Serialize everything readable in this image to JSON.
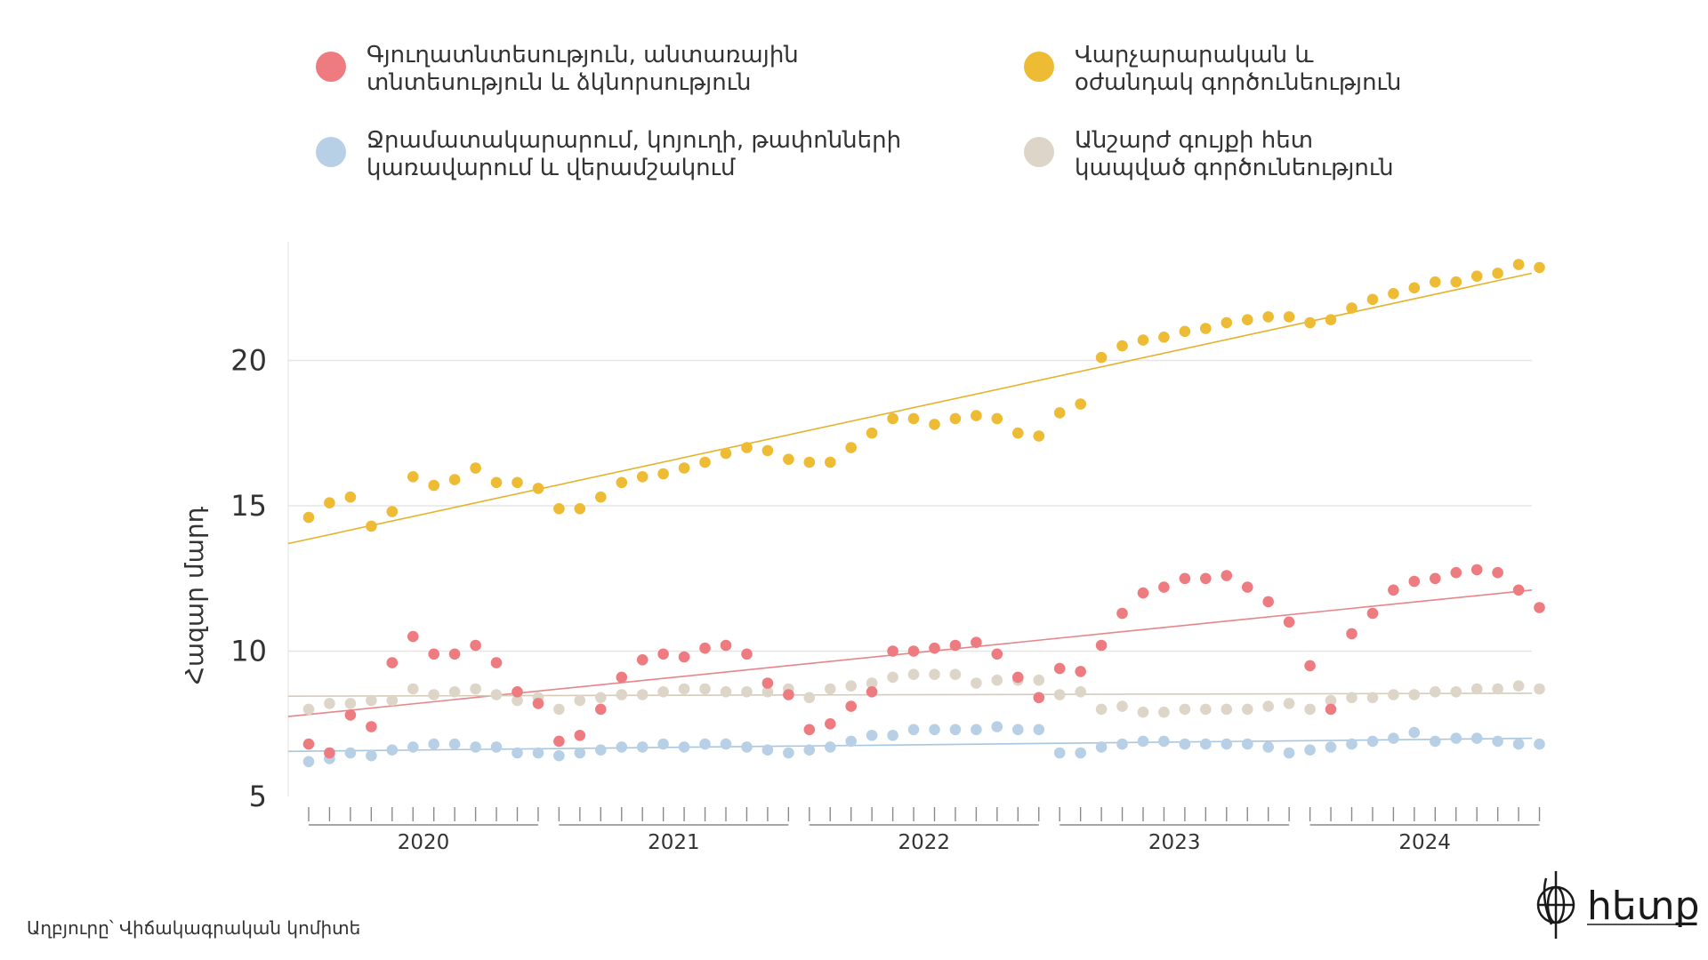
{
  "chart_data": {
    "type": "scatter",
    "title": "",
    "ylabel": "Հազար մարդ",
    "xlabel": "",
    "ylim": [
      5,
      24
    ],
    "yticks": [
      5,
      10,
      15,
      20
    ],
    "grid": true,
    "legend_position": "top",
    "years": [
      "2020",
      "2021",
      "2022",
      "2023",
      "2024"
    ],
    "months_per_year": 12,
    "series": [
      {
        "name": "Գյուղատնտեսություն, անտառային տնտեսություն և ձկնորսություն",
        "name_lines": [
          "Գյուղատնտեսություն, անտառային",
          "տնտեսություն և ձկնորսություն"
        ],
        "color": "#ee7b80",
        "trend_color": "#e5868a",
        "trend": [
          7.75,
          12.1
        ],
        "values": [
          6.8,
          6.5,
          7.8,
          7.4,
          9.6,
          10.5,
          9.9,
          9.9,
          10.2,
          9.6,
          8.6,
          8.2,
          6.9,
          7.1,
          8.0,
          9.1,
          9.7,
          9.9,
          9.8,
          10.1,
          10.2,
          9.9,
          8.9,
          8.5,
          7.3,
          7.5,
          8.1,
          8.6,
          10.0,
          10.0,
          10.1,
          10.2,
          10.3,
          9.9,
          9.1,
          8.4,
          9.4,
          9.3,
          10.2,
          11.3,
          12.0,
          12.2,
          12.5,
          12.5,
          12.6,
          12.2,
          11.7,
          11.0,
          9.5,
          8.0,
          10.6,
          11.3,
          12.1,
          12.4,
          12.5,
          12.7,
          12.8,
          12.7,
          12.1,
          11.5
        ]
      },
      {
        "name": "Վարչարարական և օժանդակ գործունեություն",
        "name_lines": [
          "Վարչարարական և",
          "օժանդակ գործունեություն"
        ],
        "color": "#edbb34",
        "trend_color": "#e6b22c",
        "trend": [
          13.7,
          23.0
        ],
        "values": [
          14.6,
          15.1,
          15.3,
          14.3,
          14.8,
          16.0,
          15.7,
          15.9,
          16.3,
          15.8,
          15.8,
          15.6,
          14.9,
          14.9,
          15.3,
          15.8,
          16.0,
          16.1,
          16.3,
          16.5,
          16.8,
          17.0,
          16.9,
          16.6,
          16.5,
          16.5,
          17.0,
          17.5,
          18.0,
          18.0,
          17.8,
          18.0,
          18.1,
          18.0,
          17.5,
          17.4,
          18.2,
          18.5,
          20.1,
          20.5,
          20.7,
          20.8,
          21.0,
          21.1,
          21.3,
          21.4,
          21.5,
          21.5,
          21.3,
          21.4,
          21.8,
          22.1,
          22.3,
          22.5,
          22.7,
          22.7,
          22.9,
          23.0,
          23.3,
          23.2
        ]
      },
      {
        "name": "Ջրամատակարարում, կոյուղի, թափոնների կառավարում և վերամշակում",
        "name_lines": [
          "Ջրամատակարարում, կոյուղի, թափոնների",
          "կառավարում և վերամշակում"
        ],
        "color": "#b7d0e6",
        "trend_color": "#a9c6df",
        "trend": [
          6.55,
          7.0
        ],
        "values": [
          6.2,
          6.3,
          6.5,
          6.4,
          6.6,
          6.7,
          6.8,
          6.8,
          6.7,
          6.7,
          6.5,
          6.5,
          6.4,
          6.5,
          6.6,
          6.7,
          6.7,
          6.8,
          6.7,
          6.8,
          6.8,
          6.7,
          6.6,
          6.5,
          6.6,
          6.7,
          6.9,
          7.1,
          7.1,
          7.3,
          7.3,
          7.3,
          7.3,
          7.4,
          7.3,
          7.3,
          6.5,
          6.5,
          6.7,
          6.8,
          6.9,
          6.9,
          6.8,
          6.8,
          6.8,
          6.8,
          6.7,
          6.5,
          6.6,
          6.7,
          6.8,
          6.9,
          7.0,
          7.2,
          6.9,
          7.0,
          7.0,
          6.9,
          6.8,
          6.8
        ]
      },
      {
        "name": "Անշարժ գույքի հետ կապված գործունեություն",
        "name_lines": [
          "Անշարժ գույքի հետ",
          "կապված գործունեություն"
        ],
        "color": "#ddd5c8",
        "trend_color": "#d5cbbb",
        "trend": [
          8.45,
          8.55
        ],
        "values": [
          8.0,
          8.2,
          8.2,
          8.3,
          8.3,
          8.7,
          8.5,
          8.6,
          8.7,
          8.5,
          8.3,
          8.4,
          8.0,
          8.3,
          8.4,
          8.5,
          8.5,
          8.6,
          8.7,
          8.7,
          8.6,
          8.6,
          8.6,
          8.7,
          8.4,
          8.7,
          8.8,
          8.9,
          9.1,
          9.2,
          9.2,
          9.2,
          8.9,
          9.0,
          9.0,
          9.0,
          8.5,
          8.6,
          8.0,
          8.1,
          7.9,
          7.9,
          8.0,
          8.0,
          8.0,
          8.0,
          8.1,
          8.2,
          8.0,
          8.3,
          8.4,
          8.4,
          8.5,
          8.5,
          8.6,
          8.6,
          8.7,
          8.7,
          8.8,
          8.7
        ]
      }
    ]
  },
  "source": "Աղբյուրը՝ Վիճակագրական կոմիտե",
  "logo": {
    "text": "հետք",
    "icon": "hetq-globe-icon"
  },
  "colors": {
    "grid": "#e6e6e6",
    "axis": "#999999",
    "text": "#333333"
  }
}
